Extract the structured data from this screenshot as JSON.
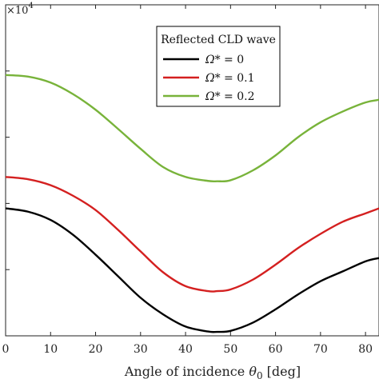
{
  "chart_data": {
    "type": "line",
    "xlabel": "Angle of incidence θ0 [deg]",
    "xlabel_main": "Angle of incidence ",
    "xlabel_symbol": "θ",
    "xlabel_sub": "0",
    "xlabel_unit": " [deg]",
    "ylabel": "",
    "y_exponent_base": "×10",
    "y_exponent_power": "4",
    "xlim": [
      0,
      83
    ],
    "ylim": [
      0,
      1
    ],
    "xticks": [
      0,
      10,
      20,
      30,
      40,
      50,
      60,
      70,
      80
    ],
    "yticks": [
      0.2,
      0.4,
      0.6,
      0.8
    ],
    "grid": false,
    "legend": {
      "title": "Reflected CLD wave",
      "position": "top-right"
    },
    "series": [
      {
        "name": "Ω* = 0",
        "name_symbol": "Ω*",
        "name_value": " = 0",
        "color": "#000000",
        "x": [
          0,
          5,
          10,
          15,
          20,
          25,
          30,
          35,
          40,
          45,
          47,
          50,
          55,
          60,
          65,
          70,
          75,
          80,
          83
        ],
        "y": [
          0.385,
          0.375,
          0.35,
          0.305,
          0.245,
          0.18,
          0.115,
          0.065,
          0.028,
          0.013,
          0.012,
          0.015,
          0.04,
          0.08,
          0.125,
          0.165,
          0.195,
          0.225,
          0.235
        ]
      },
      {
        "name": "Ω* = 0.1",
        "name_symbol": "Ω*",
        "name_value": " = 0.1",
        "color": "#d42020",
        "x": [
          0,
          5,
          10,
          15,
          20,
          25,
          30,
          35,
          40,
          45,
          47,
          50,
          55,
          60,
          65,
          70,
          75,
          80,
          83
        ],
        "y": [
          0.48,
          0.473,
          0.455,
          0.423,
          0.38,
          0.32,
          0.255,
          0.192,
          0.15,
          0.135,
          0.135,
          0.14,
          0.17,
          0.215,
          0.265,
          0.308,
          0.345,
          0.37,
          0.385
        ]
      },
      {
        "name": "Ω* = 0.2",
        "name_symbol": "Ω*",
        "name_value": " = 0.2",
        "color": "#78b33a",
        "x": [
          0,
          5,
          10,
          15,
          20,
          25,
          30,
          35,
          40,
          45,
          47,
          50,
          55,
          60,
          65,
          70,
          75,
          80,
          83
        ],
        "y": [
          0.788,
          0.783,
          0.765,
          0.73,
          0.683,
          0.625,
          0.565,
          0.51,
          0.48,
          0.468,
          0.467,
          0.47,
          0.5,
          0.545,
          0.6,
          0.645,
          0.678,
          0.705,
          0.713
        ]
      }
    ]
  }
}
